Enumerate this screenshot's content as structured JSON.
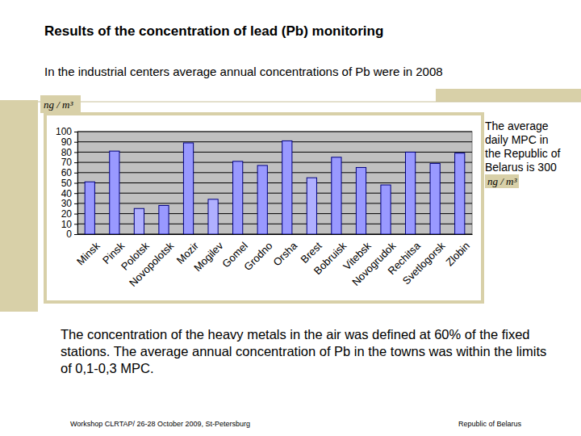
{
  "chart_data": {
    "type": "bar",
    "title": "Results of the concentration of lead (Pb) monitoring",
    "subtitle": "In the industrial centers  average annual concentrations of Pb were in 2008",
    "ylabel": "ng / m³",
    "categories": [
      "Minsk",
      "Pinsk",
      "Polotsk",
      "Novopolotsk",
      "Mozir",
      "Mogilev",
      "Gomel",
      "Grodno",
      "Orsha",
      "Brest",
      "Bobruisk",
      "Vitebsk",
      "Novogrudok",
      "Rechitsa",
      "Svetlogorsk",
      "Zlobin"
    ],
    "values": [
      51,
      81,
      25,
      28,
      89,
      34,
      71,
      67,
      91,
      55,
      75,
      65,
      48,
      80,
      69,
      79
    ],
    "colors": [
      "#9999ff",
      "#9999ff",
      "#b0b0ff",
      "#9999ff",
      "#9999ff",
      "#b0b0ff",
      "#9999ff",
      "#9999ff",
      "#9999ff",
      "#b0b0ff",
      "#9999ff",
      "#9999ff",
      "#9999ff",
      "#9999ff",
      "#9999ff",
      "#9999ff"
    ],
    "ylim": [
      0,
      100
    ],
    "yticks": [
      0,
      10,
      20,
      30,
      40,
      50,
      60,
      70,
      80,
      90,
      100
    ],
    "grid": true,
    "annotations": [
      "The average daily MPC in the Republic of Belarus is 300",
      "ng / m³",
      "The concentration of the heavy metals in the air was defined at 60% of the fixed stations. The average annual concentration of Pb in the towns was within the limits of 0,1-0,3 MPC."
    ]
  },
  "footer": {
    "left": "Workshop  CLRTAP/ 26-28 October 2009, St-Petersburg",
    "right": "Republic of Belarus"
  }
}
